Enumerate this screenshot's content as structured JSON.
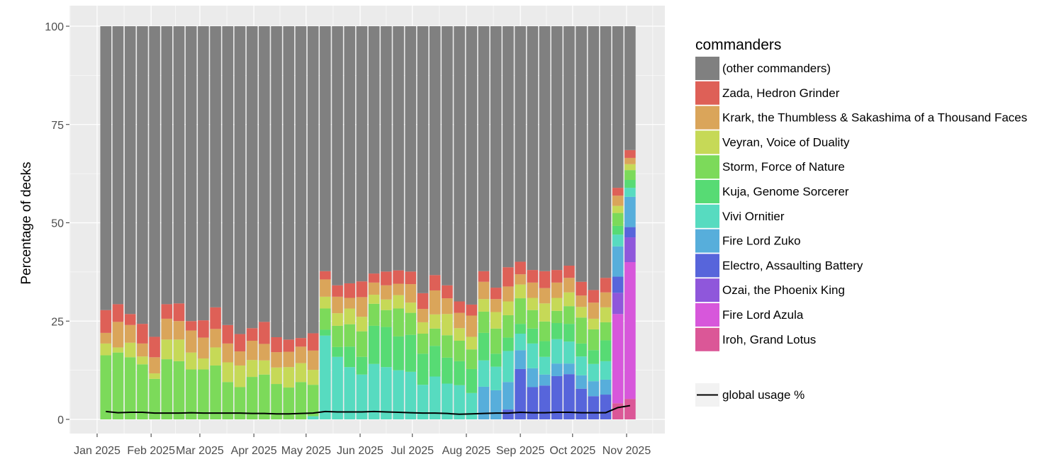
{
  "chart_data": {
    "type": "bar",
    "stacked": true,
    "ylabel": "Percentage of decks",
    "xlabel": "",
    "ylim": [
      0,
      100
    ],
    "yticks": [
      0,
      25,
      50,
      75,
      100
    ],
    "ytick_labels": [
      "0",
      "25",
      "50",
      "75",
      "100"
    ],
    "xtick_labels": [
      "Jan 2025",
      "Feb 2025",
      "Mar 2025",
      "Apr 2025",
      "May 2025",
      "Jun 2025",
      "Jul 2025",
      "Aug 2025",
      "Sep 2025",
      "Oct 2025",
      "Nov 2025"
    ],
    "x_start_week": "2025-01-06",
    "x_interval": "weekly",
    "legend_title": "commanders",
    "legend_position": "right",
    "grid": true,
    "series": [
      {
        "name": "Iroh, Grand Lotus",
        "color": "#DB5797",
        "values": [
          0,
          0,
          0,
          0,
          0,
          0,
          0,
          0,
          0,
          0,
          0,
          0,
          0,
          0,
          0,
          0,
          0,
          0,
          0,
          0,
          0,
          0,
          0,
          0,
          0,
          0,
          0,
          0,
          0,
          0,
          0,
          0,
          0,
          0,
          0,
          0,
          0,
          0,
          0,
          0,
          0,
          0,
          4.1,
          5.2
        ]
      },
      {
        "name": "Fire Lord Azula",
        "color": "#D757DB",
        "values": [
          0,
          0,
          0,
          0,
          0,
          0,
          0,
          0,
          0,
          0,
          0,
          0,
          0,
          0,
          0,
          0,
          0,
          0,
          0,
          0,
          0,
          0,
          0,
          0,
          0,
          0,
          0,
          0,
          0,
          0,
          0,
          0,
          0,
          0,
          0,
          0,
          0,
          0,
          0,
          0,
          0,
          0,
          22.7,
          34.8
        ]
      },
      {
        "name": "Ozai, the Phoenix King",
        "color": "#8F57DB",
        "values": [
          0,
          0,
          0,
          0,
          0,
          0,
          0,
          0,
          0,
          0,
          0,
          0,
          0,
          0,
          0,
          0,
          0,
          0,
          0,
          0,
          0,
          0,
          0,
          0,
          0,
          0,
          0,
          0,
          0,
          0,
          0,
          0,
          0,
          0,
          0,
          0,
          0,
          0,
          0,
          0,
          0,
          0,
          5.4,
          6.3
        ]
      },
      {
        "name": "Electro, Assaulting Battery",
        "color": "#5765DB",
        "values": [
          0,
          0,
          0,
          0,
          0,
          0,
          0,
          0,
          0,
          0,
          0,
          0,
          0,
          0,
          0,
          0,
          0,
          0,
          0,
          0,
          0,
          0,
          0,
          0,
          0,
          0,
          0,
          0,
          0,
          0,
          0,
          0,
          0,
          2.5,
          12.8,
          8.2,
          8.6,
          11.0,
          11.5,
          7.8,
          5.9,
          6.3,
          4.1,
          2.6
        ]
      },
      {
        "name": "Fire Lord Zuko",
        "color": "#57AEDB",
        "values": [
          0,
          0,
          0,
          0,
          0,
          0,
          0,
          0,
          0,
          0,
          0,
          0,
          0,
          0,
          0,
          0,
          0,
          0,
          0,
          0,
          0,
          0,
          0,
          0,
          0,
          0,
          0,
          0,
          0,
          0,
          0,
          8.3,
          7.4,
          7.0,
          4.8,
          4.8,
          2.8,
          3.2,
          2.7,
          3.4,
          3.8,
          3.8,
          7.7,
          7.7
        ]
      },
      {
        "name": "Vivi Ornitier",
        "color": "#57DBC0",
        "values": [
          0,
          0,
          0,
          0,
          0,
          0,
          0,
          0,
          0,
          0,
          0,
          0,
          0,
          0,
          0,
          0,
          0,
          0.8,
          21.3,
          15.9,
          13.3,
          11.4,
          14.1,
          13.3,
          12.5,
          12.1,
          8.8,
          10.9,
          9.1,
          8.7,
          6.7,
          6.7,
          6.0,
          7.9,
          4.2,
          6.3,
          4.5,
          6.2,
          5.6,
          4.8,
          4.4,
          4.7,
          3.0,
          2.3
        ]
      },
      {
        "name": "Kuja, Genome Sorcerer",
        "color": "#57DB74",
        "values": [
          0,
          0,
          0,
          0,
          0,
          0,
          0,
          0,
          0,
          0,
          0,
          0,
          0,
          0,
          0,
          0,
          0,
          0,
          1.5,
          2.5,
          5.2,
          4.5,
          9.7,
          10.2,
          8.6,
          9.4,
          7.9,
          7.8,
          6.6,
          6.1,
          6.1,
          7.0,
          3.3,
          3.4,
          2.5,
          3.8,
          4.0,
          4.1,
          4.5,
          3.3,
          3.5,
          5.3,
          2.2,
          2.0
        ]
      },
      {
        "name": "Storm, Force of Nature",
        "color": "#7CDA5A",
        "values": [
          16.3,
          17,
          15.8,
          14,
          10.3,
          15.3,
          14.8,
          12.7,
          12.7,
          13.7,
          9.5,
          8.2,
          10.8,
          11.4,
          9.0,
          8.1,
          9.5,
          8.0,
          5.4,
          5.4,
          5.7,
          6.5,
          5.6,
          4.3,
          7.1,
          5.6,
          5.1,
          4.4,
          5.7,
          5.2,
          5.0,
          5.4,
          6.4,
          5.7,
          6.5,
          4.7,
          5.0,
          3.1,
          4.5,
          6.6,
          5.3,
          4.6,
          3.3,
          2.5
        ]
      },
      {
        "name": "Veyran, Voice of Duality",
        "color": "#C6D957",
        "values": [
          3.0,
          1.3,
          3.7,
          2,
          1.4,
          5,
          5.5,
          4.3,
          2.8,
          4.6,
          5,
          5.5,
          4.3,
          3.6,
          4.2,
          5.2,
          4.8,
          3.8,
          3.0,
          3.2,
          4.0,
          3.7,
          2.3,
          2.7,
          3.4,
          2.6,
          2.9,
          3.6,
          5.4,
          3.2,
          3.2,
          3.2,
          4.2,
          3.5,
          3.5,
          3.1,
          4.6,
          3.3,
          3.5,
          2.7,
          2.7,
          3.8,
          1.8,
          1.5
        ]
      },
      {
        "name": "Krark, the Thumbless & Sakashima of a Thousand Faces",
        "color": "#DAA55A",
        "values": [
          2.7,
          6.5,
          4.5,
          3.3,
          4.1,
          5.3,
          4.7,
          5.6,
          5.3,
          4.7,
          4.8,
          3.6,
          4.9,
          4.2,
          3.9,
          3.9,
          4.2,
          4.9,
          4.4,
          4.2,
          2.7,
          5.0,
          3.1,
          3.6,
          2.9,
          4.7,
          3.4,
          6.1,
          4.0,
          3.9,
          5.4,
          4.4,
          3.3,
          3.8,
          2.6,
          3.9,
          3.9,
          3.9,
          3.7,
          2.9,
          4.1,
          3.8,
          2.6,
          1.6
        ]
      },
      {
        "name": "Zada, Hedron Grinder",
        "color": "#DE6057",
        "values": [
          5.8,
          4.5,
          2.8,
          5,
          5.2,
          3.7,
          4.5,
          2.4,
          4.4,
          5.5,
          4.7,
          4.4,
          3.2,
          5.6,
          3.8,
          3.1,
          2.2,
          4.4,
          2.1,
          2.9,
          3.7,
          4.0,
          2.3,
          3.5,
          3.4,
          3.2,
          4.0,
          3.9,
          3.3,
          2.9,
          2.8,
          2.7,
          2.9,
          4.9,
          3.2,
          3.2,
          4.3,
          3.2,
          3.1,
          3.5,
          3.2,
          3.7,
          2.0,
          2.0
        ]
      },
      {
        "name": "(other commanders)",
        "color": "#808080",
        "values": "remainder to 100"
      }
    ],
    "line": {
      "name": "global usage %",
      "color": "#000000",
      "values": [
        2.0,
        1.7,
        1.8,
        1.8,
        1.6,
        1.6,
        1.6,
        1.7,
        1.6,
        1.6,
        1.6,
        1.6,
        1.5,
        1.5,
        1.4,
        1.4,
        1.5,
        1.6,
        2.0,
        1.9,
        1.9,
        1.9,
        2.0,
        1.9,
        1.8,
        1.7,
        1.6,
        1.6,
        1.5,
        1.3,
        1.4,
        1.5,
        1.6,
        1.6,
        1.8,
        1.7,
        1.7,
        1.8,
        1.8,
        1.7,
        1.7,
        1.7,
        3.0,
        3.5
      ]
    },
    "legend_order": [
      "(other commanders)",
      "Zada, Hedron Grinder",
      "Krark, the Thumbless & Sakashima of a Thousand Faces",
      "Veyran, Voice of Duality",
      "Storm, Force of Nature",
      "Kuja, Genome Sorcerer",
      "Vivi Ornitier",
      "Fire Lord Zuko",
      "Electro, Assaulting Battery",
      "Ozai, the Phoenix King",
      "Fire Lord Azula",
      "Iroh, Grand Lotus"
    ]
  }
}
